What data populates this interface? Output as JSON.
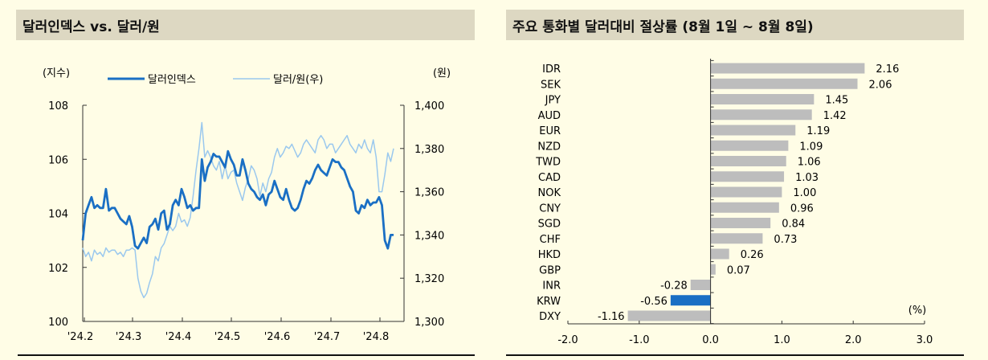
{
  "left": {
    "title": "달러인덱스 vs. 달러/원",
    "chart_data": {
      "type": "line",
      "y_left_unit": "(지수)",
      "y_right_unit": "(원)",
      "ylim_left": [
        100,
        108
      ],
      "ylim_right": [
        1300,
        1400
      ],
      "y_left_ticks": [
        "100",
        "102",
        "104",
        "106",
        "108"
      ],
      "y_right_ticks": [
        "1,300",
        "1,320",
        "1,340",
        "1,360",
        "1,380",
        "1,400"
      ],
      "x_ticks": [
        "'24.2",
        "'24.3",
        "'24.4",
        "'24.5",
        "'24.6",
        "'24.7",
        "'24.8"
      ],
      "series": [
        {
          "name": "달러인덱스",
          "axis": "left",
          "color": "#1a6fc4",
          "values": [
            103.0,
            104.0,
            104.3,
            104.6,
            104.2,
            104.3,
            104.2,
            104.2,
            104.9,
            104.1,
            104.2,
            104.2,
            104.0,
            103.8,
            103.7,
            103.6,
            103.9,
            103.5,
            102.8,
            102.7,
            102.9,
            103.1,
            102.9,
            103.5,
            103.6,
            103.8,
            103.4,
            104.0,
            104.1,
            103.4,
            103.6,
            104.3,
            104.5,
            104.3,
            104.9,
            104.6,
            104.2,
            104.3,
            104.1,
            104.2,
            104.2,
            106.0,
            105.2,
            105.7,
            105.9,
            106.2,
            106.1,
            106.1,
            105.9,
            105.7,
            106.3,
            106.0,
            105.8,
            105.4,
            105.4,
            106.0,
            105.6,
            105.1,
            104.9,
            104.8,
            104.6,
            104.5,
            104.7,
            104.3,
            104.7,
            104.8,
            105.2,
            104.9,
            104.6,
            104.5,
            104.9,
            104.5,
            104.2,
            104.1,
            104.2,
            104.5,
            104.9,
            105.2,
            105.1,
            105.3,
            105.6,
            105.8,
            105.6,
            105.5,
            105.4,
            105.7,
            106.0,
            105.9,
            105.9,
            105.7,
            105.6,
            105.3,
            105.0,
            104.8,
            104.1,
            104.0,
            104.3,
            104.2,
            104.5,
            104.3,
            104.4,
            104.4,
            104.6,
            104.3,
            103.0,
            102.7,
            103.2,
            103.2
          ]
        },
        {
          "name": "달러/원(우)",
          "axis": "right",
          "color": "#9ac8ee",
          "values": [
            1334,
            1330,
            1332,
            1328,
            1333,
            1331,
            1332,
            1330,
            1334,
            1332,
            1333,
            1333,
            1331,
            1332,
            1330,
            1333,
            1333,
            1334,
            1333,
            1320,
            1314,
            1311,
            1313,
            1318,
            1322,
            1330,
            1328,
            1334,
            1336,
            1340,
            1344,
            1342,
            1344,
            1350,
            1346,
            1347,
            1344,
            1348,
            1358,
            1370,
            1380,
            1392,
            1376,
            1379,
            1376,
            1372,
            1370,
            1374,
            1366,
            1372,
            1366,
            1369,
            1370,
            1364,
            1360,
            1356,
            1362,
            1366,
            1372,
            1370,
            1366,
            1358,
            1364,
            1360,
            1366,
            1369,
            1376,
            1380,
            1376,
            1378,
            1381,
            1380,
            1382,
            1379,
            1376,
            1378,
            1382,
            1384,
            1382,
            1380,
            1378,
            1384,
            1386,
            1384,
            1380,
            1382,
            1382,
            1378,
            1380,
            1382,
            1384,
            1386,
            1382,
            1380,
            1378,
            1382,
            1380,
            1384,
            1380,
            1378,
            1384,
            1376,
            1360,
            1360,
            1368,
            1378,
            1374,
            1380
          ]
        }
      ]
    }
  },
  "right": {
    "title": "주요 통화별 달러대비 절상률 (8월 1일 ~ 8월 8일)",
    "chart_data": {
      "type": "bar",
      "orientation": "horizontal",
      "unit": "(%)",
      "xlim": [
        -2.0,
        3.0
      ],
      "x_ticks": [
        "-2.0",
        "-1.0",
        "0.0",
        "1.0",
        "2.0",
        "3.0"
      ],
      "highlight_color": "#1a6fc4",
      "bar_color": "#bdbdbd",
      "categories": [
        "IDR",
        "SEK",
        "JPY",
        "AUD",
        "EUR",
        "NZD",
        "TWD",
        "CAD",
        "NOK",
        "CNY",
        "SGD",
        "CHF",
        "HKD",
        "GBP",
        "INR",
        "KRW",
        "DXY"
      ],
      "values": [
        2.16,
        2.06,
        1.45,
        1.42,
        1.19,
        1.09,
        1.06,
        1.03,
        1.0,
        0.96,
        0.84,
        0.73,
        0.26,
        0.07,
        -0.28,
        -0.56,
        -1.16
      ],
      "value_labels": [
        "2.16",
        "2.06",
        "1.45",
        "1.42",
        "1.19",
        "1.09",
        "1.06",
        "1.03",
        "1.00",
        "0.96",
        "0.84",
        "0.73",
        "0.26",
        "0.07",
        "-0.28",
        "-0.56",
        "-1.16"
      ],
      "highlight": "KRW"
    }
  }
}
